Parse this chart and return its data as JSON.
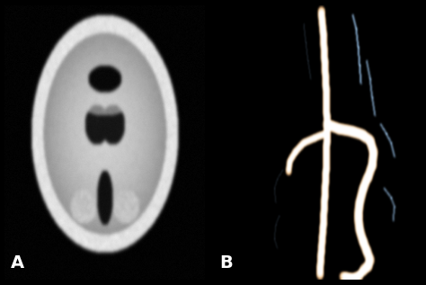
{
  "background_color": "#000000",
  "panel_A_label": "A",
  "panel_B_label": "B",
  "label_color": "#ffffff",
  "label_fontsize": 14,
  "label_fontweight": "bold",
  "fig_width": 4.74,
  "fig_height": 3.17,
  "dpi": 100
}
